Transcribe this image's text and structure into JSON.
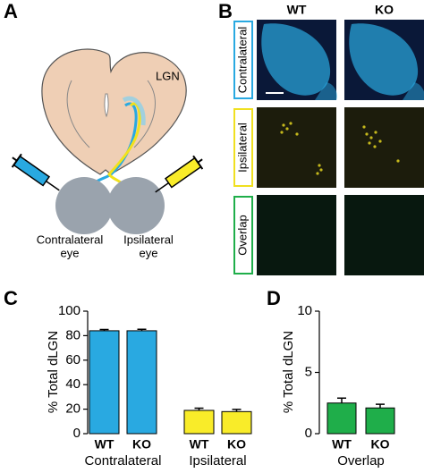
{
  "figure": {
    "panels": [
      "A",
      "B",
      "C",
      "D"
    ],
    "a": {
      "region_label": "LGN",
      "eyes": [
        [
          "Contralateral",
          "eye"
        ],
        [
          "Ipsilateral",
          "eye"
        ]
      ],
      "syringe_colors": [
        "#29a9e1",
        "#f9ec29"
      ]
    },
    "b": {
      "columns": [
        "WT",
        "KO"
      ],
      "column_colors": [
        "#000000",
        "#e6007e"
      ],
      "rows": [
        "Contralateral",
        "Ipsilateral",
        "Overlap"
      ],
      "row_colors": [
        "#29a9e1",
        "#f0e020",
        "#1fae4a"
      ]
    }
  },
  "chart_data": [
    {
      "type": "bar",
      "ylabel": "% Total dLGN",
      "ylim": [
        0,
        100
      ],
      "yticks": [
        0,
        20,
        40,
        60,
        80,
        100
      ],
      "label_colors": [
        "#000000",
        "#e6007e"
      ],
      "groups": [
        {
          "name": "Contralateral",
          "color": "#29a9e1",
          "categories": [
            "WT",
            "KO"
          ],
          "values": [
            84,
            84
          ],
          "errors": [
            1,
            1.2
          ]
        },
        {
          "name": "Ipsilateral",
          "color": "#f9ec29",
          "categories": [
            "WT",
            "KO"
          ],
          "values": [
            19,
            18
          ],
          "errors": [
            1.8,
            1.8
          ]
        }
      ]
    },
    {
      "type": "bar",
      "ylabel": "% Total dLGN",
      "ylim": [
        0,
        10
      ],
      "yticks": [
        0,
        5,
        10
      ],
      "label_colors": [
        "#000000",
        "#e6007e"
      ],
      "groups": [
        {
          "name": "Overlap",
          "color": "#1fae4a",
          "categories": [
            "WT",
            "KO"
          ],
          "values": [
            2.5,
            2.1
          ],
          "errors": [
            0.4,
            0.3
          ]
        }
      ]
    }
  ]
}
